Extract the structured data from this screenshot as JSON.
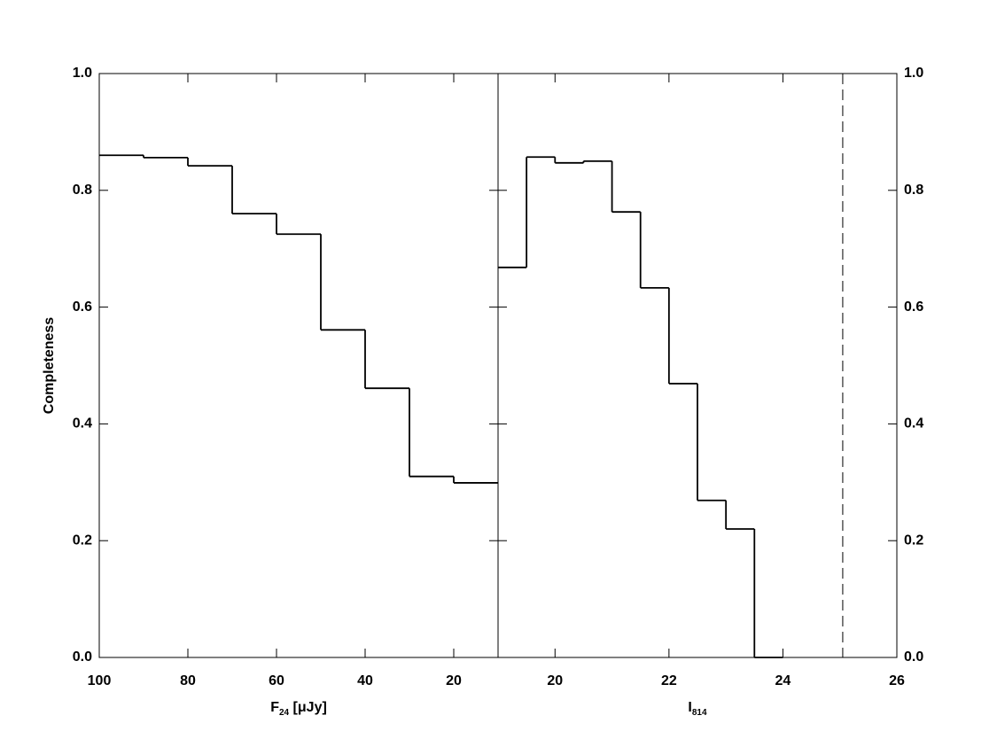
{
  "chart_data": [
    {
      "type": "histogram",
      "ylabel": "Completeness",
      "xlabel": [
        "F",
        "24",
        " [μJy]"
      ],
      "bins": [
        100,
        90,
        80,
        70,
        60,
        50,
        40,
        30,
        20,
        10
      ],
      "values": [
        0.86,
        0.856,
        0.842,
        0.76,
        0.725,
        0.561,
        0.461,
        0.31,
        0.299
      ],
      "xlim": [
        100,
        10
      ],
      "xticks": [
        100,
        80,
        60,
        40,
        20
      ],
      "ylim": [
        0,
        1
      ],
      "yticks": [
        {
          "value": 0,
          "label": "0.0"
        },
        0.2,
        0.4,
        0.6,
        0.8,
        {
          "value": 1,
          "label": "1.0"
        }
      ],
      "ytick_side": "left",
      "color": "#000000"
    },
    {
      "type": "histogram",
      "xlabel": [
        "I",
        "814"
      ],
      "bins": [
        19,
        19.5,
        20,
        20.5,
        21,
        21.5,
        22,
        22.5,
        23,
        23.5,
        24
      ],
      "values": [
        0.668,
        0.857,
        0.847,
        0.85,
        0.763,
        0.633,
        0.469,
        0.269,
        0.22,
        0
      ],
      "xlim": [
        19,
        26
      ],
      "xticks": [
        20,
        22,
        24,
        26
      ],
      "ylim": [
        0,
        1
      ],
      "yticks": [
        {
          "value": 0,
          "label": "0.0"
        },
        0.2,
        0.4,
        0.6,
        0.8,
        {
          "value": 1,
          "label": "1.0"
        }
      ],
      "ytick_side": "right",
      "vline": 25.05,
      "color": "#000000"
    }
  ]
}
